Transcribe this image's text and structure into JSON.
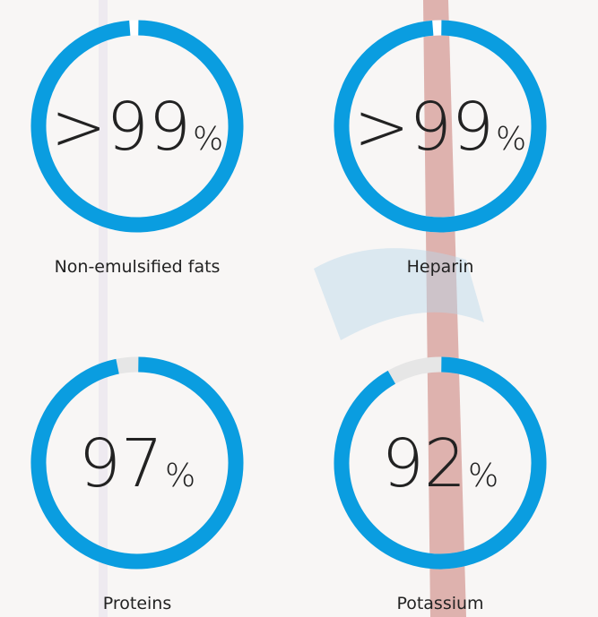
{
  "chart_data": [
    {
      "type": "gauge",
      "name": "Non-emulsified fats",
      "value": 99,
      "value_label": ">99",
      "unit": "%",
      "color": "#0a9de0",
      "track_color": "#ffffff"
    },
    {
      "type": "gauge",
      "name": "Heparin",
      "value": 99,
      "value_label": ">99",
      "unit": "%",
      "color": "#0a9de0",
      "track_color": "#ffffff"
    },
    {
      "type": "gauge",
      "name": "Proteins",
      "value": 97,
      "value_label": "97",
      "unit": "%",
      "color": "#0a9de0",
      "track_color": "#e6e6e6"
    },
    {
      "type": "gauge",
      "name": "Potassium",
      "value": 92,
      "value_label": "92",
      "unit": "%",
      "color": "#0a9de0",
      "track_color": "#e6e6e6"
    }
  ]
}
